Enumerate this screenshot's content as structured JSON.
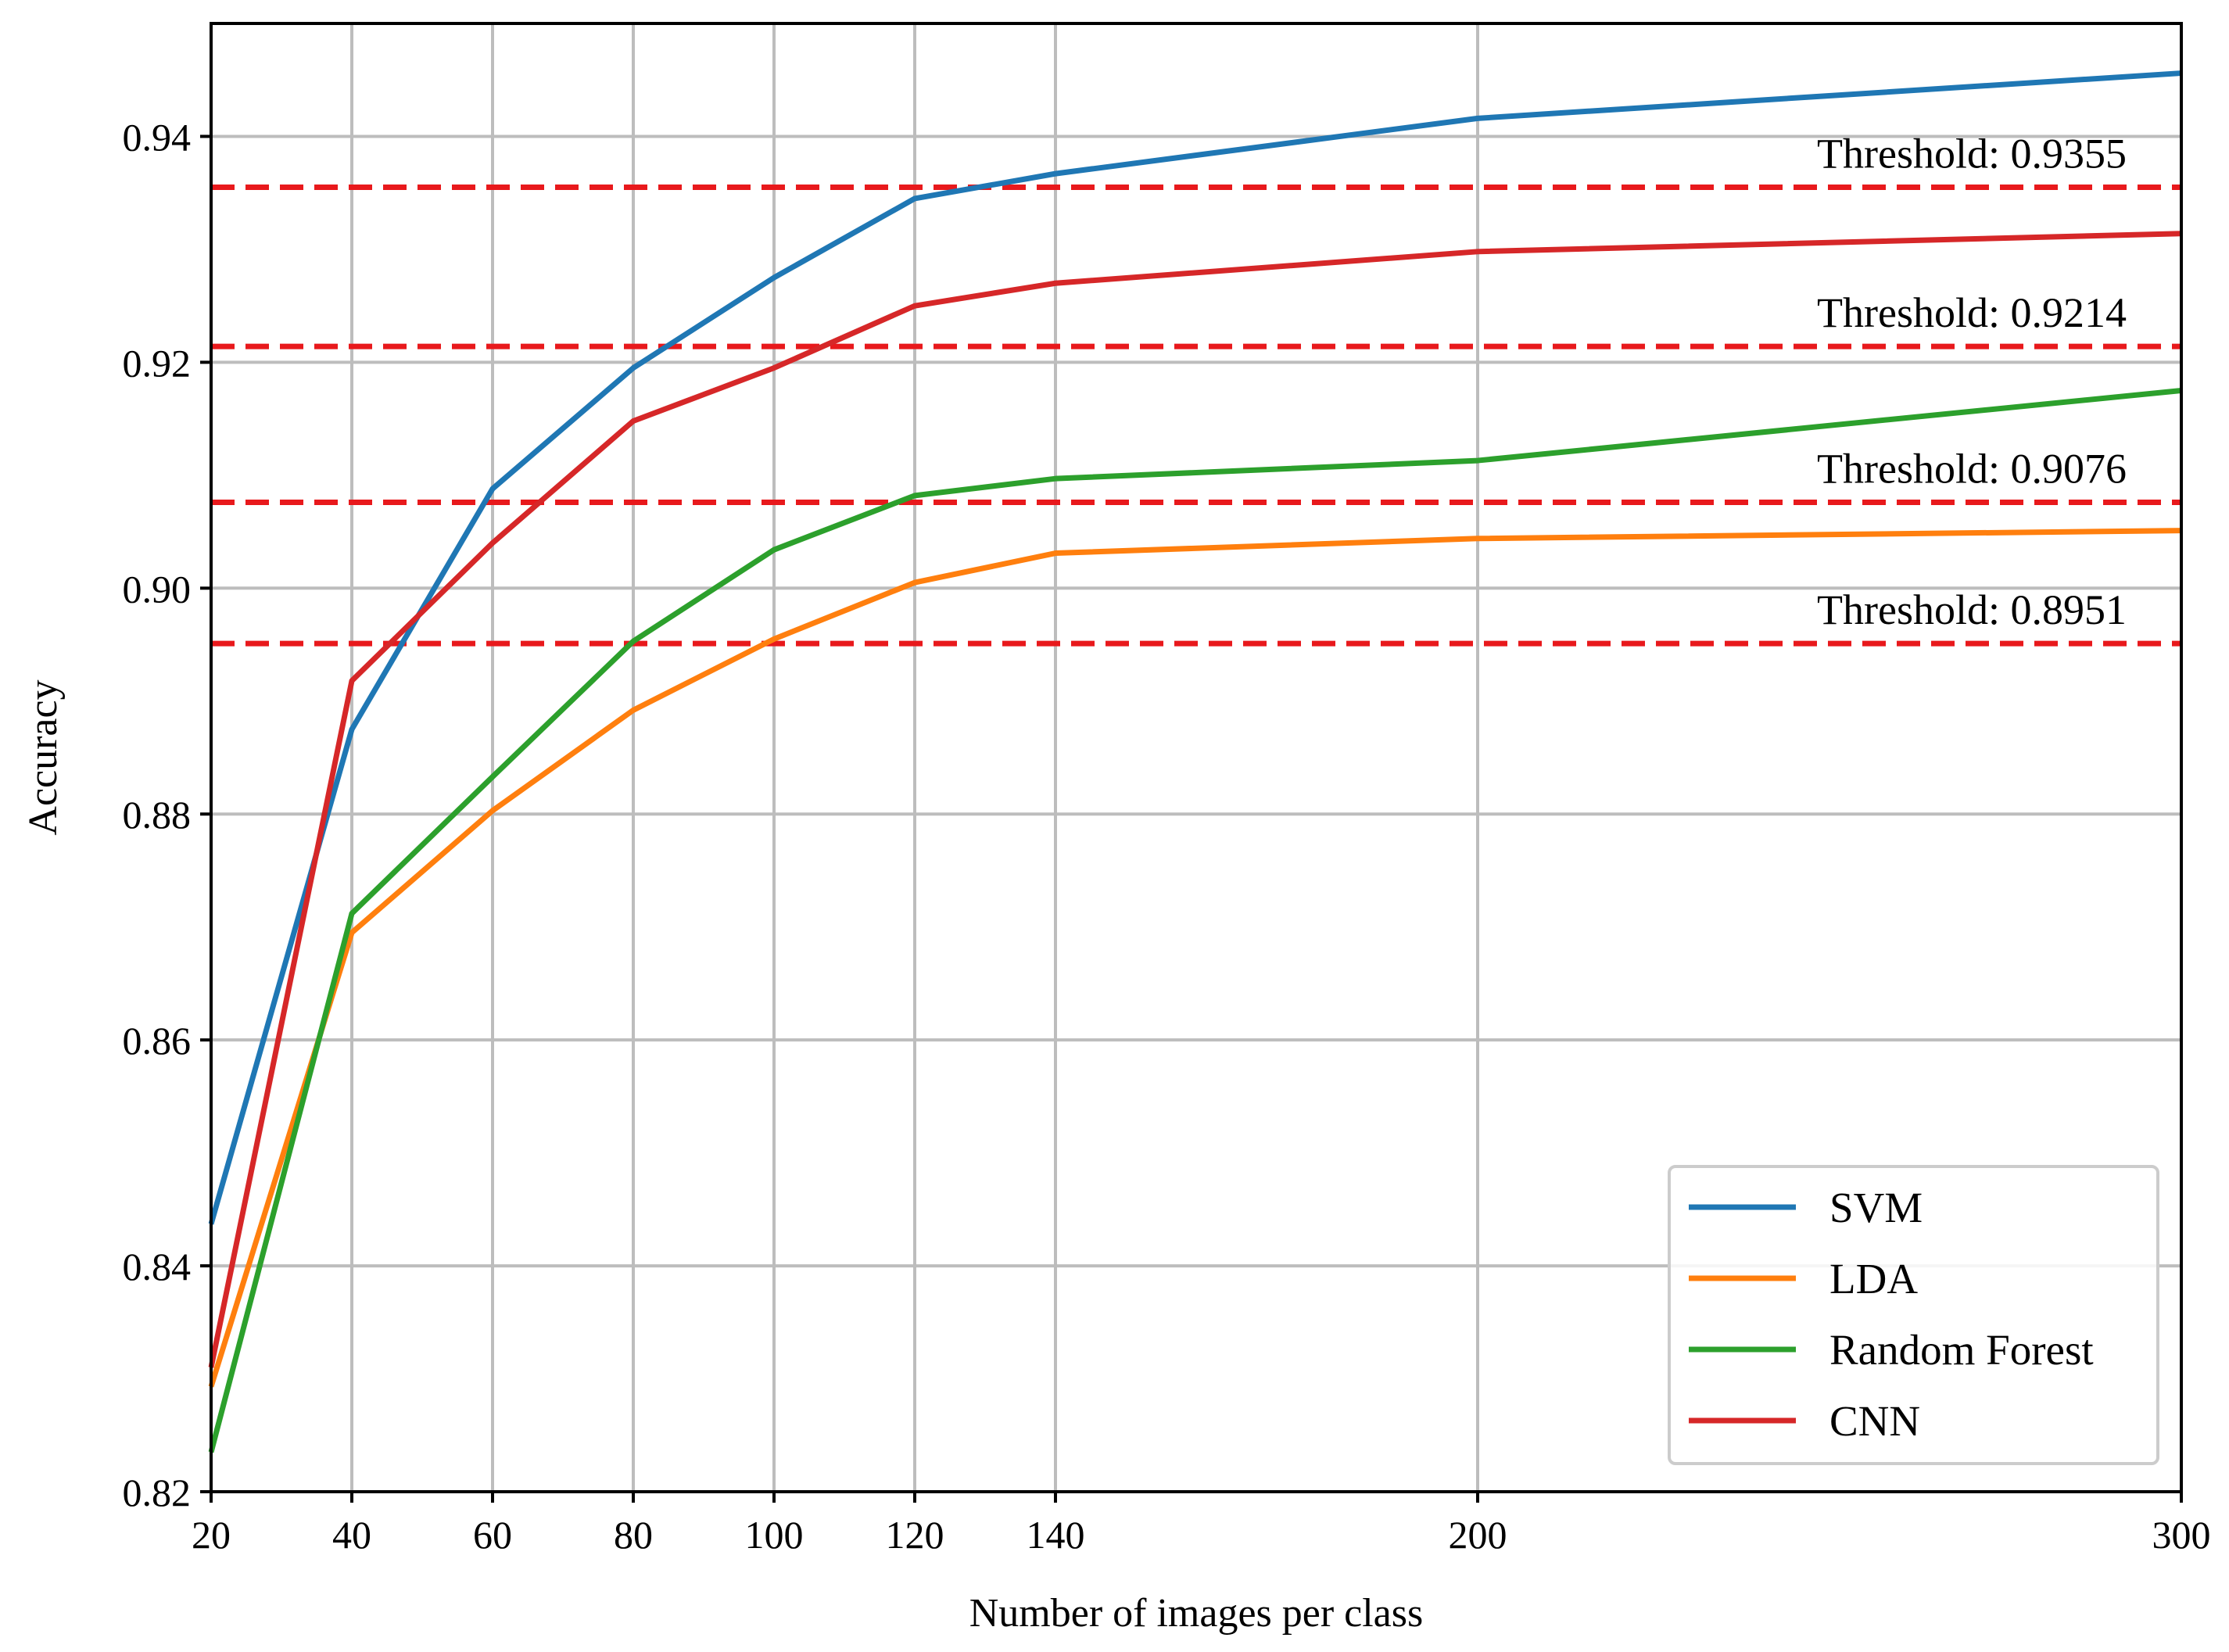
{
  "chart_data": {
    "type": "line",
    "title": "",
    "xlabel": "Number of images per class",
    "ylabel": "Accuracy",
    "x": [
      20,
      40,
      60,
      80,
      100,
      120,
      140,
      200,
      300
    ],
    "x_tick_labels": [
      "20",
      "40",
      "60",
      "80",
      "100",
      "120",
      "140",
      "200",
      "300"
    ],
    "y_ticks": [
      0.82,
      0.84,
      0.86,
      0.88,
      0.9,
      0.92,
      0.94
    ],
    "y_tick_labels": [
      "0.82",
      "0.84",
      "0.86",
      "0.88",
      "0.90",
      "0.92",
      "0.94"
    ],
    "ylim": [
      0.82,
      0.95
    ],
    "grid": true,
    "legend_position": "bottom-right",
    "series": [
      {
        "name": "SVM",
        "color": "#1f77b4",
        "values": [
          0.8437,
          0.8875,
          0.9088,
          0.9195,
          0.9275,
          0.9345,
          0.9367,
          0.9416,
          0.9456
        ]
      },
      {
        "name": "LDA",
        "color": "#ff7f0e",
        "values": [
          0.8293,
          0.8695,
          0.8803,
          0.8892,
          0.8955,
          0.9005,
          0.9031,
          0.9044,
          0.9051
        ]
      },
      {
        "name": "Random Forest",
        "color": "#2ca02c",
        "values": [
          0.8235,
          0.8712,
          0.8833,
          0.8953,
          0.9034,
          0.9082,
          0.9097,
          0.9113,
          0.9175
        ]
      },
      {
        "name": "CNN",
        "color": "#d62728",
        "values": [
          0.831,
          0.8918,
          0.904,
          0.9148,
          0.9195,
          0.925,
          0.927,
          0.9298,
          0.9314
        ]
      }
    ],
    "thresholds": [
      {
        "value": 0.9355,
        "label": "Threshold: 0.9355"
      },
      {
        "value": 0.9214,
        "label": "Threshold: 0.9214"
      },
      {
        "value": 0.9076,
        "label": "Threshold: 0.9076"
      },
      {
        "value": 0.8951,
        "label": "Threshold: 0.8951"
      }
    ],
    "threshold_color": "#e8191c"
  }
}
